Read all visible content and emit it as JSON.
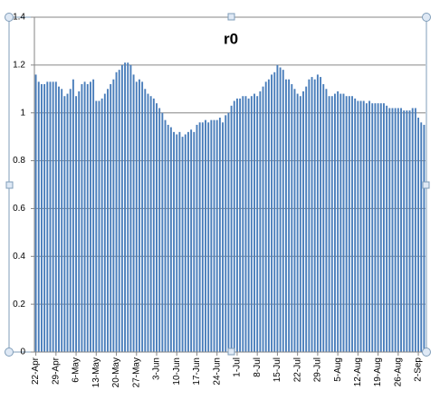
{
  "chart_data": {
    "type": "bar",
    "title": "r0",
    "categories": [
      "22-Apr",
      null,
      null,
      null,
      null,
      null,
      null,
      "29-Apr",
      null,
      null,
      null,
      null,
      null,
      null,
      "6-May",
      null,
      null,
      null,
      null,
      null,
      null,
      "13-May",
      null,
      null,
      null,
      null,
      null,
      null,
      "20-May",
      null,
      null,
      null,
      null,
      null,
      null,
      "27-May",
      null,
      null,
      null,
      null,
      null,
      null,
      "3-Jun",
      null,
      null,
      null,
      null,
      null,
      null,
      "10-Jun",
      null,
      null,
      null,
      null,
      null,
      null,
      "17-Jun",
      null,
      null,
      null,
      null,
      null,
      null,
      "24-Jun",
      null,
      null,
      null,
      null,
      null,
      null,
      "1-Jul",
      null,
      null,
      null,
      null,
      null,
      null,
      "8-Jul",
      null,
      null,
      null,
      null,
      null,
      null,
      "15-Jul",
      null,
      null,
      null,
      null,
      null,
      null,
      "22-Jul",
      null,
      null,
      null,
      null,
      null,
      null,
      "29-Jul",
      null,
      null,
      null,
      null,
      null,
      null,
      "5-Aug",
      null,
      null,
      null,
      null,
      null,
      null,
      "12-Aug",
      null,
      null,
      null,
      null,
      null,
      null,
      "19-Aug",
      null,
      null,
      null,
      null,
      null,
      null,
      "26-Aug",
      null,
      null,
      null,
      null,
      null,
      null,
      "2-Sep",
      null,
      null
    ],
    "values": [
      1.16,
      1.13,
      1.12,
      1.12,
      1.13,
      1.13,
      1.13,
      1.13,
      1.11,
      1.1,
      1.07,
      1.08,
      1.1,
      1.14,
      1.07,
      1.09,
      1.12,
      1.13,
      1.12,
      1.13,
      1.14,
      1.05,
      1.05,
      1.06,
      1.08,
      1.1,
      1.12,
      1.14,
      1.17,
      1.18,
      1.2,
      1.21,
      1.21,
      1.2,
      1.16,
      1.13,
      1.14,
      1.13,
      1.1,
      1.08,
      1.07,
      1.06,
      1.04,
      1.02,
      1.0,
      0.97,
      0.95,
      0.94,
      0.92,
      0.91,
      0.92,
      0.9,
      0.91,
      0.92,
      0.93,
      0.92,
      0.95,
      0.96,
      0.96,
      0.97,
      0.96,
      0.97,
      0.97,
      0.97,
      0.98,
      0.96,
      0.99,
      1.0,
      1.03,
      1.05,
      1.06,
      1.06,
      1.07,
      1.07,
      1.06,
      1.07,
      1.08,
      1.07,
      1.09,
      1.11,
      1.13,
      1.14,
      1.16,
      1.17,
      1.2,
      1.19,
      1.18,
      1.14,
      1.14,
      1.12,
      1.1,
      1.08,
      1.07,
      1.09,
      1.11,
      1.14,
      1.15,
      1.14,
      1.16,
      1.15,
      1.12,
      1.1,
      1.07,
      1.07,
      1.08,
      1.09,
      1.08,
      1.08,
      1.07,
      1.07,
      1.07,
      1.06,
      1.05,
      1.05,
      1.05,
      1.04,
      1.05,
      1.04,
      1.04,
      1.04,
      1.04,
      1.04,
      1.03,
      1.02,
      1.02,
      1.02,
      1.02,
      1.02,
      1.01,
      1.01,
      1.01,
      1.02,
      1.02,
      0.98,
      0.96,
      0.95
    ],
    "color": "#4a7ebb",
    "ylim": [
      0,
      1.4
    ],
    "yticks": [
      0,
      0.2,
      0.4,
      0.6,
      0.8,
      1,
      1.2,
      1.4
    ],
    "grid": true
  }
}
